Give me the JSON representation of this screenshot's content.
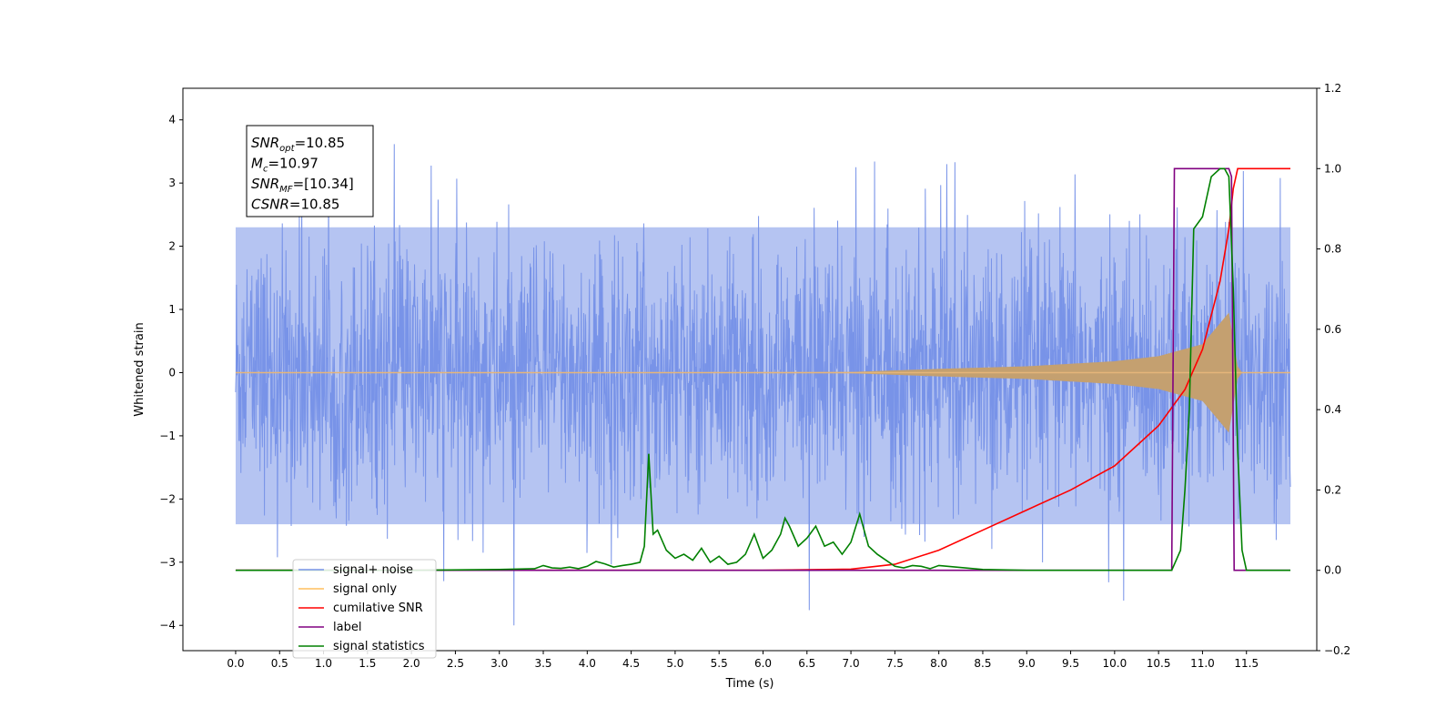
{
  "chart_data": {
    "type": "line",
    "xlabel": "Time (s)",
    "ylabel": "Whitened strain",
    "xlim": [
      -0.6,
      12.3
    ],
    "ylim_left": [
      -4.4,
      4.5
    ],
    "ylim_right": [
      -0.2,
      1.2
    ],
    "x_ticks": [
      "0.0",
      "0.5",
      "1.0",
      "1.5",
      "2.0",
      "2.5",
      "3.0",
      "3.5",
      "4.0",
      "4.5",
      "5.0",
      "5.5",
      "6.0",
      "6.5",
      "7.0",
      "7.5",
      "8.0",
      "8.5",
      "9.0",
      "9.5",
      "10.0",
      "10.5",
      "11.0",
      "11.5"
    ],
    "y_ticks_left": [
      "−4",
      "−3",
      "−2",
      "−1",
      "0",
      "1",
      "2",
      "3",
      "4"
    ],
    "y_ticks_right": [
      "−0.2",
      "0.0",
      "0.2",
      "0.4",
      "0.6",
      "0.8",
      "1.0",
      "1.2"
    ],
    "annotation": {
      "lines": [
        {
          "sym": "SNR",
          "sub": "opt",
          "val": "=10.85"
        },
        {
          "sym": "M",
          "sub": "c",
          "val": "=10.97"
        },
        {
          "sym": "SNR",
          "sub": "MF",
          "val": "=[10.34]"
        },
        {
          "sym": "CSNR",
          "sub": "",
          "val": "=10.85"
        }
      ]
    },
    "legend": {
      "position": "lower-left",
      "entries": [
        {
          "label": "signal+ noise",
          "color": "#7893e8"
        },
        {
          "label": "signal only",
          "color": "#ffbf5f"
        },
        {
          "label": "cumilative SNR",
          "color": "#ff0000"
        },
        {
          "label": "label",
          "color": "#800080"
        },
        {
          "label": "signal statistics",
          "color": "#008000"
        }
      ]
    },
    "series": [
      {
        "name": "signal+ noise",
        "axis": "left",
        "color": "#7893e8",
        "description_points": {
          "t_start": 0.0,
          "t_end": 12.0,
          "band_high": 2.3,
          "band_low": -2.4,
          "max_spike": 4.1,
          "min_spike": -4.0
        }
      },
      {
        "name": "signal only",
        "axis": "left",
        "color": "#c4a070",
        "envelope": {
          "t": [
            0.0,
            7.0,
            8.0,
            9.0,
            10.0,
            10.5,
            11.0,
            11.3,
            11.4,
            11.45,
            12.0
          ],
          "amp": [
            0.0,
            0.01,
            0.06,
            0.1,
            0.18,
            0.26,
            0.45,
            0.95,
            0.1,
            0.0,
            0.0
          ]
        }
      },
      {
        "name": "cumilative SNR",
        "axis": "right",
        "color": "#ff0000",
        "x": [
          0.0,
          6.0,
          7.0,
          7.5,
          8.0,
          8.5,
          9.0,
          9.5,
          10.0,
          10.5,
          10.8,
          11.0,
          11.2,
          11.3,
          11.35,
          11.4,
          12.0
        ],
        "y": [
          0.0,
          0.0,
          0.003,
          0.015,
          0.05,
          0.1,
          0.15,
          0.2,
          0.26,
          0.36,
          0.45,
          0.55,
          0.72,
          0.85,
          0.95,
          1.0,
          1.0
        ]
      },
      {
        "name": "label",
        "axis": "right",
        "color": "#800080",
        "x": [
          0.0,
          10.65,
          10.68,
          11.3,
          11.33,
          11.36,
          11.4,
          12.0
        ],
        "y": [
          0.0,
          0.0,
          1.0,
          1.0,
          0.98,
          0.0,
          0.0,
          0.0
        ]
      },
      {
        "name": "signal statistics",
        "axis": "right",
        "color": "#008000",
        "x": [
          0.0,
          2.0,
          3.0,
          3.4,
          3.5,
          3.6,
          3.7,
          3.8,
          3.9,
          4.0,
          4.1,
          4.2,
          4.3,
          4.4,
          4.5,
          4.6,
          4.65,
          4.7,
          4.75,
          4.8,
          4.9,
          5.0,
          5.1,
          5.2,
          5.3,
          5.4,
          5.5,
          5.6,
          5.7,
          5.8,
          5.9,
          6.0,
          6.1,
          6.2,
          6.25,
          6.3,
          6.4,
          6.5,
          6.6,
          6.7,
          6.8,
          6.9,
          7.0,
          7.1,
          7.2,
          7.3,
          7.4,
          7.5,
          7.6,
          7.7,
          7.8,
          7.9,
          8.0,
          8.5,
          9.0,
          9.5,
          10.0,
          10.5,
          10.65,
          10.75,
          10.8,
          10.85,
          10.9,
          11.0,
          11.1,
          11.2,
          11.25,
          11.3,
          11.35,
          11.4,
          11.45,
          11.5,
          12.0
        ],
        "y": [
          0.0,
          0.0,
          0.002,
          0.004,
          0.012,
          0.006,
          0.005,
          0.008,
          0.004,
          0.01,
          0.022,
          0.016,
          0.008,
          0.012,
          0.015,
          0.02,
          0.06,
          0.29,
          0.09,
          0.1,
          0.05,
          0.03,
          0.04,
          0.025,
          0.055,
          0.02,
          0.035,
          0.015,
          0.02,
          0.04,
          0.09,
          0.03,
          0.05,
          0.09,
          0.13,
          0.11,
          0.06,
          0.08,
          0.11,
          0.06,
          0.07,
          0.04,
          0.07,
          0.14,
          0.06,
          0.04,
          0.025,
          0.01,
          0.006,
          0.012,
          0.01,
          0.004,
          0.012,
          0.002,
          0.0,
          0.0,
          0.0,
          0.0,
          0.0,
          0.05,
          0.2,
          0.4,
          0.85,
          0.88,
          0.98,
          1.0,
          1.0,
          0.98,
          0.7,
          0.3,
          0.05,
          0.0,
          0.0
        ]
      }
    ]
  }
}
